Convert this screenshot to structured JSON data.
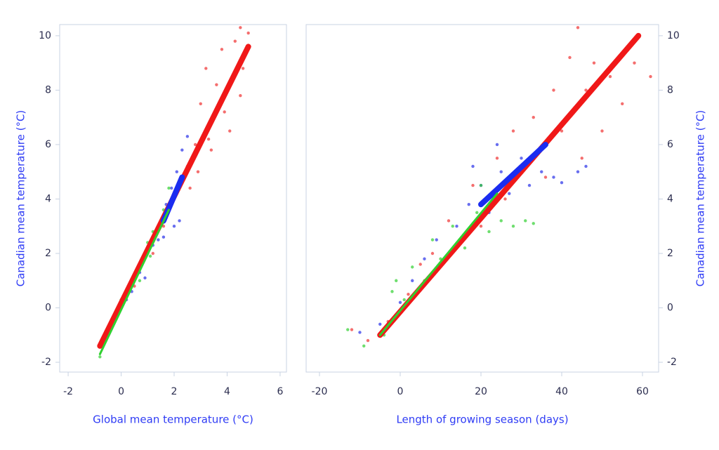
{
  "chart_data": [
    {
      "type": "scatter",
      "xlabel": "Global mean temperature (°C)",
      "ylabel": "Canadian mean temperature (°C)",
      "yaxis_position": "left",
      "xlim": [
        -2.32,
        6.24
      ],
      "ylim": [
        -2.36,
        10.41
      ],
      "xticks": [
        -2,
        0,
        2,
        4,
        6
      ],
      "yticks": [
        -2,
        0,
        2,
        4,
        6,
        8,
        10
      ],
      "series": [
        {
          "mode": "markers",
          "color": "#f03030",
          "x": [
            2.2,
            2.5,
            2.8,
            3.0,
            3.2,
            3.3,
            3.5,
            3.6,
            3.8,
            4.0,
            4.1,
            4.3,
            4.5,
            4.6,
            4.8,
            4.5,
            3.9,
            2.6,
            2.9,
            3.4,
            1.2,
            1.6,
            0.5,
            -0.5
          ],
          "y": [
            4.5,
            5.2,
            6.0,
            7.5,
            8.8,
            6.2,
            7.0,
            8.2,
            9.5,
            8.0,
            6.5,
            9.8,
            10.3,
            8.8,
            10.1,
            7.8,
            7.2,
            4.4,
            5.0,
            5.8,
            2.0,
            3.0,
            0.8,
            -0.8
          ]
        },
        {
          "mode": "markers",
          "color": "#2830e8",
          "x": [
            -0.7,
            -0.5,
            -0.3,
            0.2,
            0.4,
            0.7,
            1.0,
            1.2,
            1.4,
            1.5,
            1.7,
            1.9,
            2.1,
            2.3,
            2.5,
            2.2,
            2.0,
            1.6,
            0.9,
            -0.2
          ],
          "y": [
            -1.2,
            -0.9,
            -0.4,
            0.3,
            0.6,
            1.3,
            2.0,
            2.3,
            2.5,
            3.2,
            3.8,
            4.4,
            5.0,
            5.8,
            6.3,
            3.2,
            3.0,
            2.6,
            1.1,
            -0.2
          ]
        },
        {
          "mode": "markers",
          "color": "#30d030",
          "x": [
            -0.8,
            -0.6,
            -0.4,
            -0.1,
            0.3,
            0.5,
            0.8,
            1.0,
            1.2,
            1.4,
            1.6,
            1.8,
            0.7,
            1.1,
            0.0
          ],
          "y": [
            -1.8,
            -1.0,
            -0.6,
            0.0,
            0.8,
            1.2,
            1.8,
            2.4,
            2.8,
            3.0,
            3.6,
            4.4,
            1.0,
            1.9,
            0.3
          ]
        },
        {
          "mode": "line",
          "color": "#f01818",
          "x": [
            -0.8,
            4.8
          ],
          "y": [
            -1.4,
            9.6
          ]
        },
        {
          "mode": "line",
          "color": "#1a2cf0",
          "x": [
            1.6,
            2.3
          ],
          "y": [
            3.2,
            4.8
          ]
        },
        {
          "mode": "line",
          "color": "#30d030",
          "x": [
            -0.8,
            1.8
          ],
          "y": [
            -1.7,
            3.6
          ]
        }
      ]
    },
    {
      "type": "scatter",
      "xlabel": "Length of growing season (days)",
      "ylabel": "Canadian mean temperature (°C)",
      "yaxis_position": "right",
      "xlim": [
        -23.3,
        64.0
      ],
      "ylim": [
        -2.36,
        10.41
      ],
      "xticks": [
        -20,
        0,
        20,
        40,
        60
      ],
      "yticks": [
        -2,
        0,
        2,
        4,
        6,
        8,
        10
      ],
      "series": [
        {
          "mode": "markers",
          "color": "#f03030",
          "x": [
            -12,
            -8,
            -3,
            2,
            5,
            8,
            12,
            15,
            18,
            20,
            24,
            26,
            28,
            30,
            33,
            36,
            38,
            40,
            42,
            44,
            46,
            48,
            50,
            52,
            55,
            58,
            62,
            36,
            45
          ],
          "y": [
            -0.8,
            -1.2,
            -0.5,
            0.5,
            1.6,
            2.0,
            3.2,
            2.5,
            4.5,
            3.0,
            5.5,
            4.0,
            6.5,
            5.2,
            7.0,
            6.0,
            8.0,
            6.5,
            9.2,
            10.3,
            8.0,
            9.0,
            6.5,
            8.5,
            7.5,
            9.0,
            8.5,
            4.8,
            5.5
          ]
        },
        {
          "mode": "markers",
          "color": "#2830e8",
          "x": [
            -10,
            -5,
            0,
            3,
            6,
            9,
            12,
            14,
            17,
            20,
            22,
            25,
            27,
            30,
            32,
            35,
            38,
            40,
            44,
            46,
            18,
            24
          ],
          "y": [
            -0.9,
            -0.6,
            0.2,
            1.0,
            1.8,
            2.5,
            2.0,
            3.0,
            3.8,
            4.5,
            3.5,
            5.0,
            4.2,
            5.5,
            4.5,
            5.0,
            4.8,
            4.6,
            5.0,
            5.2,
            5.2,
            6.0
          ]
        },
        {
          "mode": "markers",
          "color": "#30d030",
          "x": [
            -13,
            -9,
            -4,
            -2,
            1,
            3,
            6,
            8,
            10,
            13,
            16,
            19,
            22,
            25,
            28,
            31,
            33,
            20,
            -1
          ],
          "y": [
            -0.8,
            -1.4,
            -1.0,
            0.6,
            0.3,
            1.5,
            1.0,
            2.5,
            1.8,
            3.0,
            2.2,
            3.5,
            2.8,
            3.2,
            3.0,
            3.2,
            3.1,
            4.5,
            1.0
          ]
        },
        {
          "mode": "line",
          "color": "#f01818",
          "x": [
            -5,
            59
          ],
          "y": [
            -1.0,
            10.0
          ]
        },
        {
          "mode": "line",
          "color": "#1a2cf0",
          "x": [
            20,
            36
          ],
          "y": [
            3.8,
            6.0
          ]
        },
        {
          "mode": "line",
          "color": "#30d030",
          "x": [
            -5,
            24
          ],
          "y": [
            -1.0,
            4.2
          ]
        }
      ]
    }
  ]
}
